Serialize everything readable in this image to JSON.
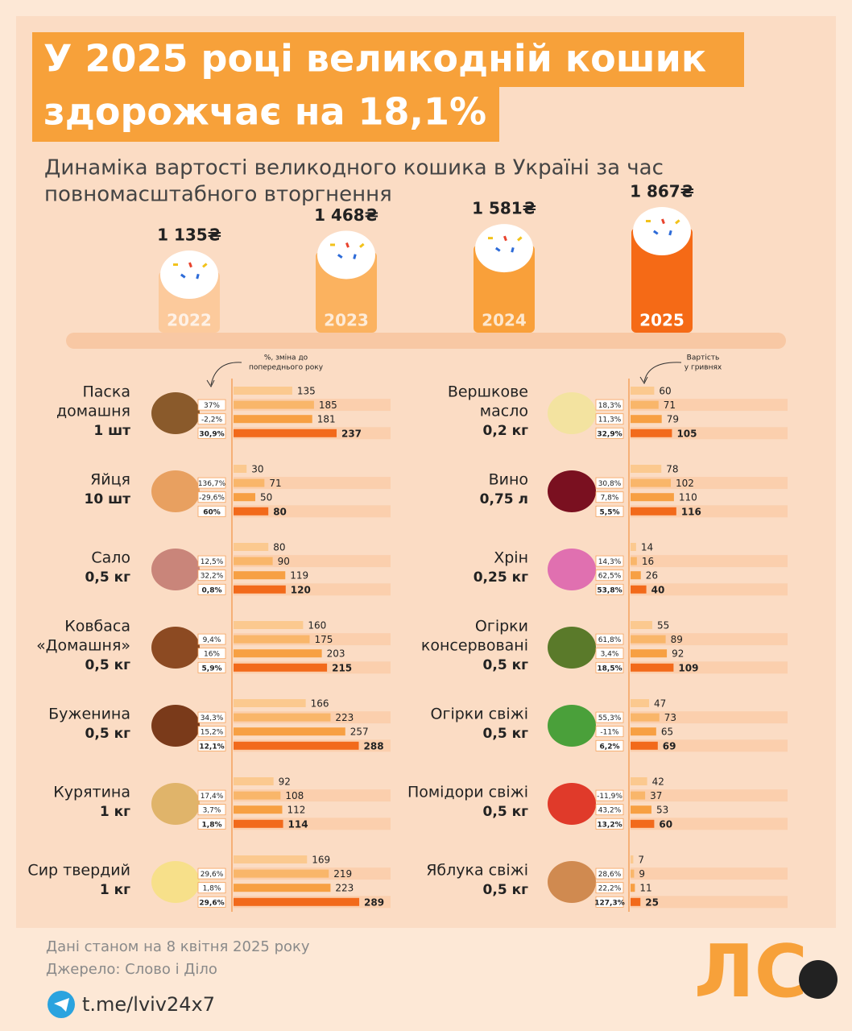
{
  "header": {
    "title_lines": [
      "У 2025 році великодній кошик",
      "здорожчає на 18,1%"
    ],
    "subtitle_lines": [
      "Динаміка вартості великодного кошика в Україні за час",
      "повномасштабного вторгнення"
    ]
  },
  "totals": {
    "years": [
      "2022",
      "2023",
      "2024",
      "2025"
    ],
    "values": [
      1135,
      1468,
      1581,
      1867
    ],
    "value_labels": [
      "1 135₴",
      "1 468₴",
      "1 581₴",
      "1 867₴"
    ]
  },
  "notes": {
    "change_lines": [
      "%, зміна до",
      "попереднього року"
    ],
    "price_lines": [
      "Вартість",
      "у гривнях"
    ]
  },
  "items": [
    {
      "name_lines": [
        "Паска",
        "домашня"
      ],
      "unit": "1 шт",
      "changes": [
        "37%",
        "-2,2%",
        "30,9%"
      ],
      "prices": [
        135,
        185,
        181,
        237
      ]
    },
    {
      "name_lines": [
        "Яйця"
      ],
      "unit": "10 шт",
      "changes": [
        "136,7%",
        "-29,6%",
        "60%"
      ],
      "prices": [
        30,
        71,
        50,
        80
      ]
    },
    {
      "name_lines": [
        "Сало"
      ],
      "unit": "0,5 кг",
      "changes": [
        "12,5%",
        "32,2%",
        "0,8%"
      ],
      "prices": [
        80,
        90,
        119,
        120
      ]
    },
    {
      "name_lines": [
        "Ковбаса",
        "«Домашня»"
      ],
      "unit": "0,5 кг",
      "changes": [
        "9,4%",
        "16%",
        "5,9%"
      ],
      "prices": [
        160,
        175,
        203,
        215
      ]
    },
    {
      "name_lines": [
        "Буженина"
      ],
      "unit": "0,5 кг",
      "changes": [
        "34,3%",
        "15,2%",
        "12,1%"
      ],
      "prices": [
        166,
        223,
        257,
        288
      ]
    },
    {
      "name_lines": [
        "Курятина"
      ],
      "unit": "1 кг",
      "changes": [
        "17,4%",
        "3,7%",
        "1,8%"
      ],
      "prices": [
        92,
        108,
        112,
        114
      ]
    },
    {
      "name_lines": [
        "Сир твердий"
      ],
      "unit": "1 кг",
      "changes": [
        "29,6%",
        "1,8%",
        "29,6%"
      ],
      "prices": [
        169,
        219,
        223,
        289
      ]
    },
    {
      "name_lines": [
        "Вершкове",
        "масло"
      ],
      "unit": "0,2 кг",
      "changes": [
        "18,3%",
        "11,3%",
        "32,9%"
      ],
      "prices": [
        60,
        71,
        79,
        105
      ]
    },
    {
      "name_lines": [
        "Вино"
      ],
      "unit": "0,75 л",
      "changes": [
        "30,8%",
        "7,8%",
        "5,5%"
      ],
      "prices": [
        78,
        102,
        110,
        116
      ]
    },
    {
      "name_lines": [
        "Хрін"
      ],
      "unit": "0,25 кг",
      "changes": [
        "14,3%",
        "62,5%",
        "53,8%"
      ],
      "prices": [
        14,
        16,
        26,
        40
      ]
    },
    {
      "name_lines": [
        "Огірки",
        "консервовані"
      ],
      "unit": "0,5 кг",
      "changes": [
        "61,8%",
        "3,4%",
        "18,5%"
      ],
      "prices": [
        55,
        89,
        92,
        109
      ]
    },
    {
      "name_lines": [
        "Огірки свіжі"
      ],
      "unit": "0,5 кг",
      "changes": [
        "55,3%",
        "-11%",
        "6,2%"
      ],
      "prices": [
        47,
        73,
        65,
        69
      ]
    },
    {
      "name_lines": [
        "Помідори свіжі"
      ],
      "unit": "0,5 кг",
      "changes": [
        "-11,9%",
        "43,2%",
        "13,2%"
      ],
      "prices": [
        42,
        37,
        53,
        60
      ]
    },
    {
      "name_lines": [
        "Яблука свіжі"
      ],
      "unit": "0,5 кг",
      "changes": [
        "28,6%",
        "22,2%",
        "127,3%"
      ],
      "prices": [
        7,
        9,
        11,
        25
      ]
    }
  ],
  "footer": {
    "date": "Дані станом на 8 квітня 2025 року",
    "source": "Джерело: Слово і Діло",
    "link": "t.me/lviv24x7",
    "logo": "ЛС"
  }
}
